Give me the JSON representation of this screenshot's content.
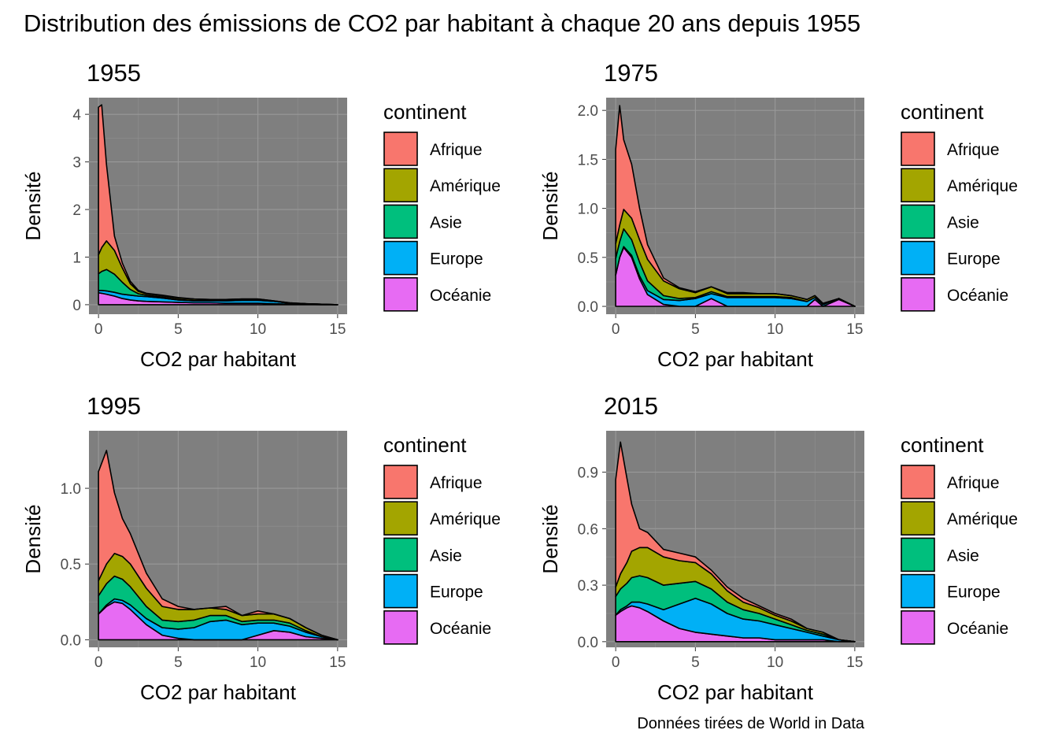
{
  "title": "Distribution des émissions de CO2 par habitant à chaque 20 ans depuis 1955",
  "caption": "Données tirées de World in Data",
  "legend": {
    "title": "continent",
    "items": [
      {
        "label": "Afrique",
        "color": "#F8766D"
      },
      {
        "label": "Amérique",
        "color": "#A3A500"
      },
      {
        "label": "Asie",
        "color": "#00BF7D"
      },
      {
        "label": "Europe",
        "color": "#00B0F6"
      },
      {
        "label": "Océanie",
        "color": "#E76BF3"
      }
    ]
  },
  "panel_background": "#7f7f7f",
  "grid_color": "#999999",
  "chart_data": [
    {
      "type": "area",
      "stacking": "stacked density",
      "title": "1955",
      "xlabel": "CO2 par habitant",
      "ylabel": "Densité",
      "xlim": [
        -0.6,
        15.6
      ],
      "ylim": [
        -0.2,
        4.35
      ],
      "xticks": [
        0,
        5,
        10,
        15
      ],
      "yticks": [
        0,
        1,
        2,
        3,
        4
      ],
      "x": [
        0,
        0.2,
        0.5,
        1,
        1.5,
        2,
        2.5,
        3,
        4,
        5,
        6,
        7,
        8,
        9,
        10,
        11,
        12,
        13,
        14,
        15
      ],
      "series": [
        {
          "name": "Océanie",
          "values": [
            0.25,
            0.24,
            0.22,
            0.18,
            0.13,
            0.1,
            0.08,
            0.07,
            0.06,
            0.05,
            0.04,
            0.04,
            0.03,
            0.03,
            0.03,
            0.02,
            0.01,
            0.01,
            0.0,
            0.0
          ]
        },
        {
          "name": "Europe",
          "values": [
            0.05,
            0.06,
            0.07,
            0.08,
            0.09,
            0.1,
            0.1,
            0.1,
            0.08,
            0.05,
            0.04,
            0.04,
            0.05,
            0.06,
            0.06,
            0.05,
            0.02,
            0.01,
            0.01,
            0.0
          ]
        },
        {
          "name": "Asie",
          "values": [
            0.35,
            0.4,
            0.45,
            0.38,
            0.25,
            0.12,
            0.05,
            0.03,
            0.02,
            0.01,
            0.01,
            0.01,
            0.01,
            0.01,
            0.01,
            0.0,
            0.0,
            0.0,
            0.0,
            0.0
          ]
        },
        {
          "name": "Amérique",
          "values": [
            0.4,
            0.5,
            0.6,
            0.5,
            0.3,
            0.12,
            0.05,
            0.03,
            0.03,
            0.03,
            0.03,
            0.02,
            0.02,
            0.02,
            0.02,
            0.01,
            0.01,
            0.0,
            0.0,
            0.0
          ]
        },
        {
          "name": "Afrique",
          "values": [
            3.1,
            3.0,
            1.6,
            0.3,
            0.1,
            0.05,
            0.02,
            0.01,
            0.01,
            0.01,
            0.0,
            0.0,
            0.0,
            0.0,
            0.0,
            0.0,
            0.0,
            0.0,
            0.0,
            0.0
          ]
        }
      ]
    },
    {
      "type": "area",
      "stacking": "stacked density",
      "title": "1975",
      "xlabel": "CO2 par habitant",
      "ylabel": "Densité",
      "xlim": [
        -0.6,
        15.6
      ],
      "ylim": [
        -0.08,
        2.13
      ],
      "xticks": [
        0,
        5,
        10,
        15
      ],
      "yticks": [
        0.0,
        0.5,
        1.0,
        1.5,
        2.0
      ],
      "ytick_labels": [
        "0.0",
        "0.5",
        "1.0",
        "1.5",
        "2.0"
      ],
      "x": [
        0,
        0.25,
        0.5,
        1,
        1.5,
        2,
        3,
        4,
        5,
        6,
        7,
        8,
        9,
        10,
        11,
        12,
        12.5,
        13,
        14,
        15
      ],
      "series": [
        {
          "name": "Océanie",
          "values": [
            0.32,
            0.5,
            0.6,
            0.5,
            0.28,
            0.12,
            0.02,
            0.0,
            0.0,
            0.08,
            0.0,
            0.0,
            0.0,
            0.0,
            0.0,
            0.0,
            0.07,
            0.0,
            0.07,
            0.0
          ]
        },
        {
          "name": "Europe",
          "values": [
            0.0,
            0.0,
            0.01,
            0.02,
            0.03,
            0.04,
            0.05,
            0.06,
            0.08,
            0.05,
            0.09,
            0.09,
            0.09,
            0.09,
            0.08,
            0.05,
            0.02,
            0.02,
            0.01,
            0.0
          ]
        },
        {
          "name": "Asie",
          "values": [
            0.17,
            0.16,
            0.18,
            0.16,
            0.14,
            0.1,
            0.04,
            0.02,
            0.01,
            0.02,
            0.01,
            0.01,
            0.01,
            0.01,
            0.01,
            0.0,
            0.0,
            0.0,
            0.0,
            0.0
          ]
        },
        {
          "name": "Amérique",
          "values": [
            0.15,
            0.17,
            0.2,
            0.22,
            0.23,
            0.22,
            0.15,
            0.1,
            0.05,
            0.05,
            0.03,
            0.03,
            0.03,
            0.03,
            0.02,
            0.02,
            0.02,
            0.01,
            0.0,
            0.0
          ]
        },
        {
          "name": "Afrique",
          "values": [
            0.96,
            1.22,
            0.71,
            0.55,
            0.32,
            0.15,
            0.03,
            0.01,
            0.01,
            0.0,
            0.01,
            0.01,
            0.0,
            0.0,
            0.0,
            0.0,
            0.0,
            0.0,
            0.0,
            0.0
          ]
        }
      ]
    },
    {
      "type": "area",
      "stacking": "stacked density",
      "title": "1995",
      "xlabel": "CO2 par habitant",
      "ylabel": "Densité",
      "xlim": [
        -0.6,
        15.6
      ],
      "ylim": [
        -0.05,
        1.38
      ],
      "xticks": [
        0,
        5,
        10,
        15
      ],
      "yticks": [
        0.0,
        0.5,
        1.0
      ],
      "ytick_labels": [
        "0.0",
        "0.5",
        "1.0"
      ],
      "x": [
        0,
        0.5,
        1,
        1.5,
        2,
        3,
        4,
        5,
        6,
        7,
        8,
        9,
        10,
        11,
        12,
        13,
        14,
        15
      ],
      "series": [
        {
          "name": "Océanie",
          "values": [
            0.17,
            0.22,
            0.25,
            0.24,
            0.2,
            0.1,
            0.03,
            0.01,
            0.0,
            0.0,
            0.0,
            0.0,
            0.03,
            0.06,
            0.05,
            0.02,
            0.01,
            0.0
          ]
        },
        {
          "name": "Europe",
          "values": [
            0.0,
            0.01,
            0.02,
            0.02,
            0.03,
            0.04,
            0.05,
            0.06,
            0.08,
            0.12,
            0.13,
            0.1,
            0.08,
            0.05,
            0.04,
            0.03,
            0.01,
            0.0
          ]
        },
        {
          "name": "Asie",
          "values": [
            0.12,
            0.14,
            0.15,
            0.14,
            0.12,
            0.08,
            0.05,
            0.05,
            0.05,
            0.04,
            0.03,
            0.02,
            0.02,
            0.02,
            0.02,
            0.01,
            0.0,
            0.0
          ]
        },
        {
          "name": "Amérique",
          "values": [
            0.1,
            0.13,
            0.15,
            0.15,
            0.15,
            0.12,
            0.09,
            0.08,
            0.07,
            0.05,
            0.04,
            0.04,
            0.04,
            0.04,
            0.03,
            0.02,
            0.01,
            0.0
          ]
        },
        {
          "name": "Afrique",
          "values": [
            0.72,
            0.75,
            0.4,
            0.25,
            0.2,
            0.1,
            0.05,
            0.02,
            0.0,
            0.0,
            0.02,
            0.0,
            0.02,
            0.0,
            0.0,
            0.0,
            0.0,
            0.0
          ]
        }
      ]
    },
    {
      "type": "area",
      "stacking": "stacked density",
      "title": "2015",
      "xlabel": "CO2 par habitant",
      "ylabel": "Densité",
      "xlim": [
        -0.6,
        15.6
      ],
      "ylim": [
        -0.03,
        1.12
      ],
      "xticks": [
        0,
        5,
        10,
        15
      ],
      "yticks": [
        0.0,
        0.3,
        0.6,
        0.9
      ],
      "ytick_labels": [
        "0.0",
        "0.3",
        "0.6",
        "0.9"
      ],
      "x": [
        0,
        0.3,
        0.7,
        1,
        1.5,
        2,
        3,
        4,
        5,
        6,
        7,
        8,
        9,
        10,
        11,
        12,
        13,
        14,
        15
      ],
      "series": [
        {
          "name": "Océanie",
          "values": [
            0.14,
            0.16,
            0.18,
            0.19,
            0.18,
            0.16,
            0.11,
            0.07,
            0.05,
            0.04,
            0.03,
            0.02,
            0.02,
            0.01,
            0.01,
            0.01,
            0.01,
            0.0,
            0.0
          ]
        },
        {
          "name": "Europe",
          "values": [
            0.0,
            0.01,
            0.01,
            0.02,
            0.03,
            0.04,
            0.06,
            0.13,
            0.18,
            0.16,
            0.12,
            0.1,
            0.09,
            0.08,
            0.06,
            0.04,
            0.02,
            0.01,
            0.0
          ]
        },
        {
          "name": "Asie",
          "values": [
            0.1,
            0.11,
            0.12,
            0.13,
            0.14,
            0.14,
            0.13,
            0.11,
            0.09,
            0.08,
            0.06,
            0.05,
            0.04,
            0.03,
            0.02,
            0.01,
            0.01,
            0.0,
            0.0
          ]
        },
        {
          "name": "Amérique",
          "values": [
            0.05,
            0.08,
            0.11,
            0.14,
            0.15,
            0.16,
            0.15,
            0.12,
            0.1,
            0.08,
            0.06,
            0.04,
            0.03,
            0.02,
            0.02,
            0.01,
            0.01,
            0.0,
            0.0
          ]
        },
        {
          "name": "Afrique",
          "values": [
            0.57,
            0.7,
            0.45,
            0.25,
            0.1,
            0.08,
            0.04,
            0.04,
            0.03,
            0.02,
            0.02,
            0.02,
            0.01,
            0.01,
            0.01,
            0.0,
            0.0,
            0.0,
            0.0
          ]
        }
      ]
    }
  ]
}
